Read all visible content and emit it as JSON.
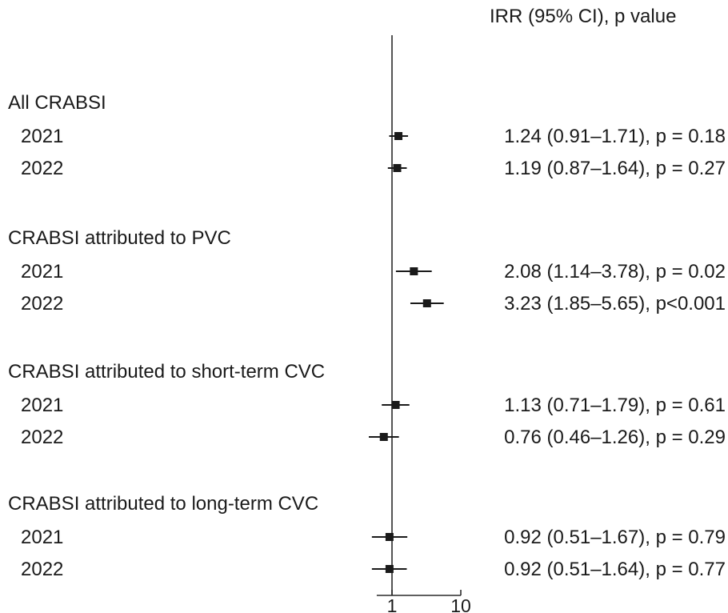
{
  "chart_data": {
    "type": "forest",
    "x_scale": "log",
    "xlim": [
      0.6,
      10
    ],
    "reference_line": 1,
    "x_ticks": [
      1,
      10
    ],
    "x_tick_labels": [
      "1",
      "10"
    ],
    "column_header": "IRR (95% CI), p value",
    "groups": [
      {
        "label": "All CRABSI",
        "rows": [
          {
            "label": "2021",
            "irr": 1.24,
            "lo": 0.91,
            "hi": 1.71,
            "text": "1.24 (0.91–1.71), p = 0.18"
          },
          {
            "label": "2022",
            "irr": 1.19,
            "lo": 0.87,
            "hi": 1.64,
            "text": "1.19 (0.87–1.64), p = 0.27"
          }
        ]
      },
      {
        "label": "CRABSI attributed to PVC",
        "rows": [
          {
            "label": "2021",
            "irr": 2.08,
            "lo": 1.14,
            "hi": 3.78,
            "text": "2.08 (1.14–3.78), p = 0.02"
          },
          {
            "label": "2022",
            "irr": 3.23,
            "lo": 1.85,
            "hi": 5.65,
            "text": "3.23 (1.85–5.65), p<0.001"
          }
        ]
      },
      {
        "label": "CRABSI attributed to short-term CVC",
        "rows": [
          {
            "label": "2021",
            "irr": 1.13,
            "lo": 0.71,
            "hi": 1.79,
            "text": "1.13 (0.71–1.79), p = 0.61"
          },
          {
            "label": "2022",
            "irr": 0.76,
            "lo": 0.46,
            "hi": 1.26,
            "text": "0.76 (0.46–1.26), p = 0.29"
          }
        ]
      },
      {
        "label": "CRABSI attributed to long-term CVC",
        "rows": [
          {
            "label": "2021",
            "irr": 0.92,
            "lo": 0.51,
            "hi": 1.67,
            "text": "0.92 (0.51–1.67), p = 0.79"
          },
          {
            "label": "2022",
            "irr": 0.92,
            "lo": 0.51,
            "hi": 1.64,
            "text": "0.92 (0.51–1.64), p = 0.77"
          }
        ]
      }
    ]
  }
}
